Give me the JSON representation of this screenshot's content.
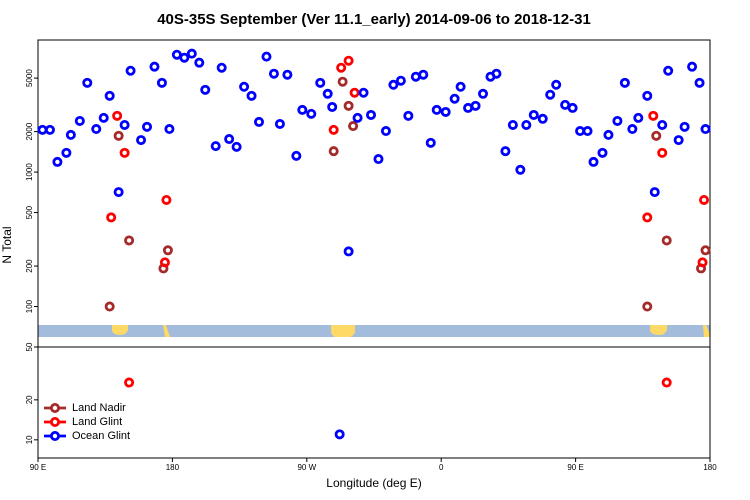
{
  "chart_data": [
    {
      "type": "scatter",
      "title": "40S-35S September (Ver 11.1_early)   2014-09-06 to 2018-12-31",
      "ylabel": "N Total",
      "log": true,
      "ylim": [
        50,
        9600
      ],
      "yticks": [
        50,
        100,
        200,
        500,
        1000,
        2000,
        5000
      ],
      "xlim": [
        90,
        540
      ],
      "series": [
        {
          "color": "#a52a2a",
          "x": [
            138,
            144,
            151,
            174,
            177,
            288,
            294,
            298,
            301,
            498,
            504,
            511,
            534,
            537
          ],
          "values": [
            100,
            1860,
            310,
            192,
            262,
            1430,
            4700,
            3110,
            2200,
            100,
            1860,
            310,
            192,
            262
          ]
        },
        {
          "color": "#ff0000",
          "x": [
            139,
            143,
            148,
            175,
            176,
            288,
            293,
            298,
            302,
            498,
            502,
            508,
            535,
            536
          ],
          "values": [
            460,
            2620,
            1390,
            213,
            620,
            2060,
            5970,
            6730,
            3890,
            460,
            2620,
            1390,
            213,
            620
          ]
        },
        {
          "color": "#0000ff",
          "x": [
            93,
            98,
            103,
            109,
            112,
            118,
            123,
            129,
            134,
            138,
            144,
            148,
            152,
            159,
            163,
            168,
            173,
            178,
            183,
            188,
            193,
            198,
            202,
            209,
            213,
            218,
            223,
            228,
            233,
            238,
            243,
            248,
            252,
            257,
            263,
            267,
            273,
            279,
            284,
            287,
            298,
            304,
            308,
            313,
            318,
            323,
            328,
            333,
            338,
            343,
            348,
            353,
            357,
            363,
            369,
            373,
            378,
            383,
            388,
            393,
            397,
            403,
            408,
            413,
            417,
            422,
            428,
            433,
            437,
            443,
            448,
            453,
            458,
            462,
            468,
            472,
            478,
            483,
            488,
            492,
            498,
            503,
            508,
            512,
            519,
            523,
            528,
            533,
            537
          ],
          "values": [
            2060,
            2060,
            1190,
            1390,
            1890,
            2400,
            4610,
            2090,
            2530,
            3690,
            710,
            2240,
            5670,
            1730,
            2170,
            6080,
            4610,
            2090,
            7460,
            7090,
            7600,
            6510,
            4090,
            1560,
            5970,
            1760,
            1540,
            4310,
            3690,
            2360,
            7220,
            5390,
            2280,
            5300,
            1320,
            2900,
            2710,
            4610,
            3820,
            3050,
            257,
            2530,
            3890,
            2660,
            1250,
            2020,
            4460,
            4780,
            2620,
            5120,
            5300,
            1650,
            2900,
            2800,
            3510,
            4310,
            3000,
            3110,
            3820,
            5120,
            5390,
            1430,
            2240,
            1040,
            2240,
            2660,
            2490,
            3760,
            4460,
            3160,
            3000,
            2020,
            2020,
            1190,
            1390,
            1890,
            2400,
            4610,
            2090,
            2530,
            3690,
            710,
            2240,
            5670,
            1730,
            2170,
            6080,
            4610,
            2090
          ]
        }
      ]
    },
    {
      "type": "scatter",
      "xlabel": "Longitude (deg E)",
      "log": true,
      "ylim": [
        7.3,
        50
      ],
      "yticks": [
        10,
        20
      ],
      "xlim": [
        90,
        540
      ],
      "xticks": [
        {
          "value": 90,
          "label": "90 E"
        },
        180,
        {
          "value": 270,
          "label": "90 W"
        },
        {
          "value": 360,
          "label": "0"
        },
        {
          "value": 450,
          "label": "90 E"
        },
        {
          "value": 540,
          "label": "180"
        }
      ],
      "legend": "lower left",
      "series": [
        {
          "name": "Land Nadir",
          "color": "#a52a2a",
          "x": [],
          "values": []
        },
        {
          "name": "Land Glint",
          "color": "#ff0000",
          "x": [
            151,
            511
          ],
          "values": [
            27,
            27
          ]
        },
        {
          "name": "Ocean Glint",
          "color": "#0000ff",
          "x": [
            292
          ],
          "values": [
            11
          ]
        }
      ]
    }
  ]
}
